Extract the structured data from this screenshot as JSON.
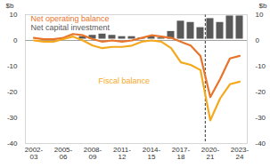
{
  "chart_data": {
    "type": "bar",
    "categories": [
      "2002-03",
      null,
      null,
      "2005-06",
      null,
      null,
      "2008-09",
      null,
      null,
      "2011-12",
      null,
      null,
      "2014-15",
      null,
      null,
      "2017-18",
      null,
      null,
      "2020-21",
      null,
      null,
      "2023-24"
    ],
    "series": [
      {
        "name": "Net capital investment",
        "type": "bar",
        "color": "#595959",
        "axis": "y2",
        "values": [
          1,
          0.5,
          0.5,
          0.5,
          1,
          2,
          2.5,
          3,
          2.5,
          2,
          2,
          1.5,
          2,
          1.5,
          4,
          8,
          7.5,
          5.5,
          9,
          7.5,
          10,
          10
        ]
      },
      {
        "name": "Net operating balance",
        "type": "line",
        "color": "#E8742A",
        "values": [
          1,
          0.5,
          0.5,
          1,
          2.5,
          2,
          0.5,
          -0.5,
          0,
          -0.5,
          0,
          1,
          2,
          1.5,
          1,
          -0.5,
          -2,
          -6,
          -22,
          -15,
          -7,
          -6
        ]
      },
      {
        "name": "Fiscal balance",
        "type": "line",
        "color": "#F5A81C",
        "values": [
          0,
          -0.5,
          -0.5,
          0.5,
          1.5,
          0,
          -2,
          -3,
          -2.5,
          -2.5,
          -2,
          -0.5,
          0,
          -0.5,
          -3,
          -8.5,
          -9.5,
          -11.5,
          -31,
          -22.5,
          -17,
          -16
        ]
      }
    ],
    "ylabel": "$b",
    "ylim": [
      -40,
      10
    ],
    "yticks": [
      -40,
      -30,
      -20,
      -10,
      0,
      10
    ],
    "y2label": "$b",
    "y2lim": [
      -40,
      10
    ],
    "y2ticks": [
      -40,
      -30,
      -20,
      -10,
      0,
      10
    ],
    "grid": false
  }
}
